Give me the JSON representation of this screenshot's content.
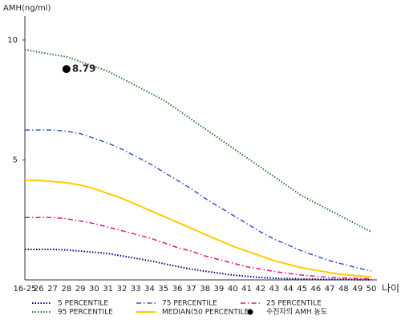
{
  "chart_data": {
    "type": "line",
    "y_label": "AMH(ng/ml)",
    "x_label": "나이",
    "categories": [
      "16-25",
      "26",
      "27",
      "28",
      "29",
      "30",
      "31",
      "32",
      "33",
      "34",
      "35",
      "36",
      "37",
      "38",
      "39",
      "40",
      "41",
      "42",
      "43",
      "44",
      "45",
      "46",
      "47",
      "48",
      "49",
      "50"
    ],
    "ylim": [
      0,
      11
    ],
    "yticks": [
      5,
      10
    ],
    "series": [
      {
        "name": "5 PERCENTILE",
        "color": "#000080",
        "dash": "dotted",
        "values": [
          1.27,
          1.27,
          1.27,
          1.25,
          1.2,
          1.15,
          1.1,
          1.0,
          0.9,
          0.8,
          0.68,
          0.56,
          0.45,
          0.36,
          0.28,
          0.2,
          0.15,
          0.1,
          0.07,
          0.05,
          0.04,
          0.03,
          0.02,
          0.02,
          0.01,
          0.01
        ]
      },
      {
        "name": "25 PERCENTILE",
        "color": "#e0157f",
        "dash": "dashdot",
        "values": [
          2.6,
          2.6,
          2.6,
          2.55,
          2.45,
          2.35,
          2.2,
          2.05,
          1.9,
          1.75,
          1.55,
          1.35,
          1.2,
          1.0,
          0.85,
          0.7,
          0.55,
          0.45,
          0.35,
          0.27,
          0.2,
          0.15,
          0.1,
          0.08,
          0.06,
          0.05
        ]
      },
      {
        "name": "MEDIAN(50 PERCENTILE)",
        "color": "#ffcc00",
        "dash": "solid",
        "values": [
          4.15,
          4.15,
          4.1,
          4.05,
          3.95,
          3.8,
          3.6,
          3.4,
          3.15,
          2.9,
          2.65,
          2.4,
          2.15,
          1.9,
          1.65,
          1.4,
          1.2,
          1.0,
          0.8,
          0.65,
          0.5,
          0.4,
          0.3,
          0.22,
          0.17,
          0.13
        ]
      },
      {
        "name": "75 PERCENTILE",
        "color": "#3355cc",
        "dash": "dashdot",
        "values": [
          6.25,
          6.25,
          6.25,
          6.2,
          6.1,
          5.9,
          5.7,
          5.45,
          5.15,
          4.85,
          4.5,
          4.15,
          3.8,
          3.4,
          3.05,
          2.7,
          2.35,
          2.0,
          1.7,
          1.45,
          1.2,
          1.0,
          0.8,
          0.65,
          0.5,
          0.37
        ]
      },
      {
        "name": "95 PERCENTILE",
        "color": "#2e7d32",
        "dash": "dotted",
        "values": [
          9.6,
          9.5,
          9.4,
          9.3,
          9.1,
          8.9,
          8.7,
          8.4,
          8.1,
          7.8,
          7.5,
          7.1,
          6.7,
          6.3,
          5.9,
          5.5,
          5.1,
          4.7,
          4.3,
          3.9,
          3.5,
          3.2,
          2.9,
          2.6,
          2.3,
          2.0
        ]
      }
    ],
    "marker": {
      "name": "수진자의 AMH 농도",
      "color": "#000000",
      "x": "28",
      "value": 8.79
    },
    "legend_order": [
      0,
      3,
      1,
      4,
      2
    ]
  }
}
